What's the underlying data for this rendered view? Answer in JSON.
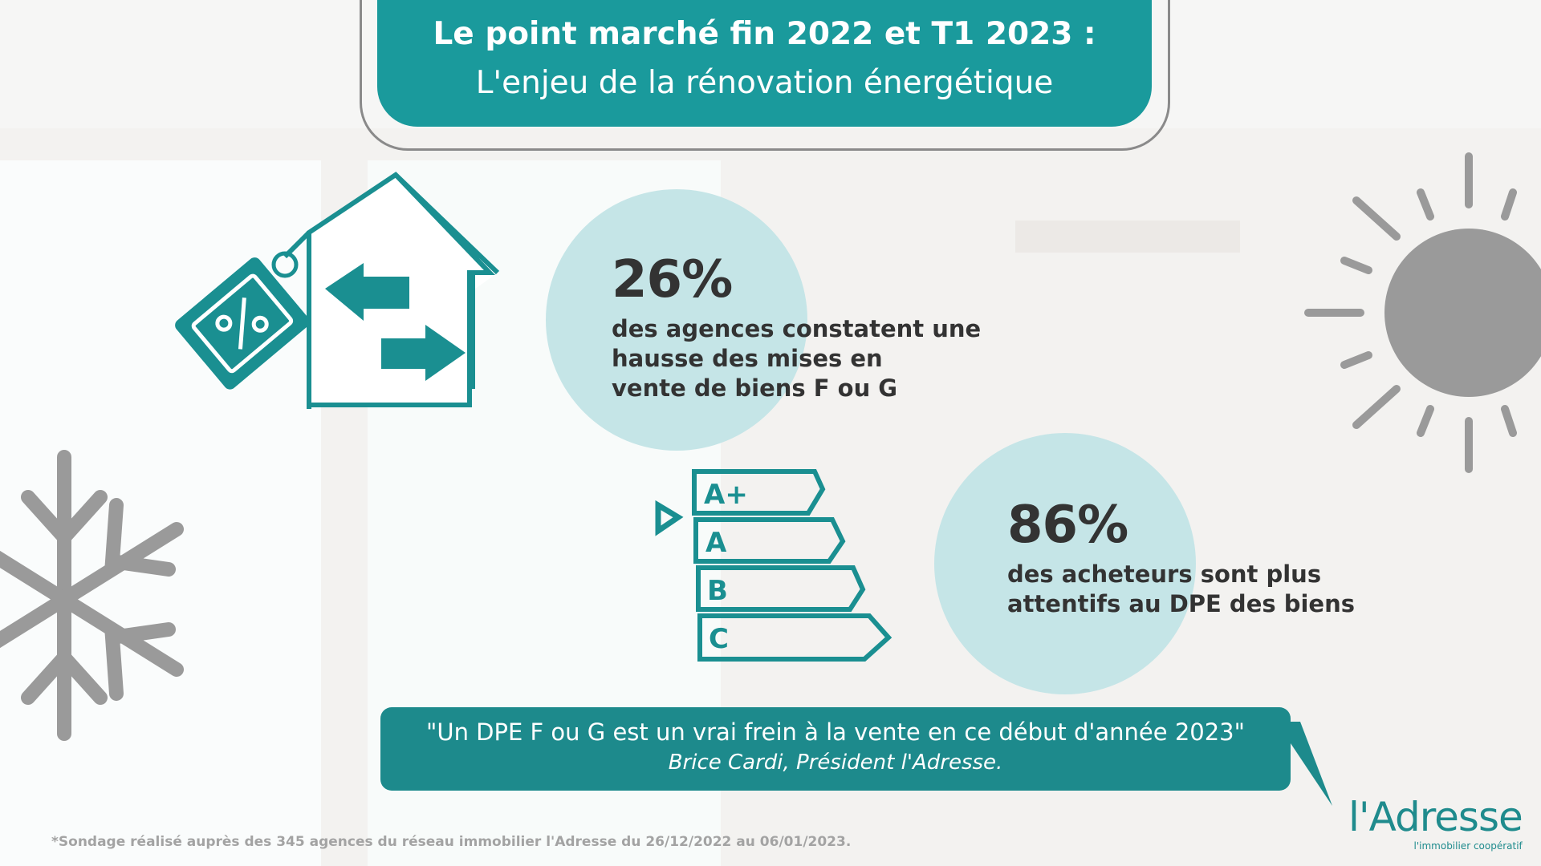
{
  "header": {
    "title": "Le point marché fin 2022 et T1 2023 :",
    "subtitle": "L'enjeu de la rénovation énergétique"
  },
  "stats": [
    {
      "value": "26%",
      "lines": [
        "des agences constatent une",
        "hausse des mises en",
        "vente de biens F ou G"
      ]
    },
    {
      "value": "86%",
      "lines": [
        "des acheteurs sont plus",
        "attentifs au DPE des biens"
      ]
    }
  ],
  "energy_label": {
    "classes": [
      "A+",
      "A",
      "B",
      "C"
    ]
  },
  "quote": {
    "text": "\"Un DPE F ou G est un vrai frein à la vente en ce début d'année 2023\"",
    "author": "Brice Cardi, Président l'Adresse."
  },
  "footnote": "*Sondage réalisé auprès des 345 agences du réseau immobilier l'Adresse du 26/12/2022 au 06/01/2023.",
  "logo": {
    "name": "l'Adresse",
    "tagline": "l'immobilier coopératif"
  },
  "colors": {
    "teal": "#1a9a9c",
    "circle": "#c5e5e7",
    "icon_gray": "#9a9a9a"
  }
}
